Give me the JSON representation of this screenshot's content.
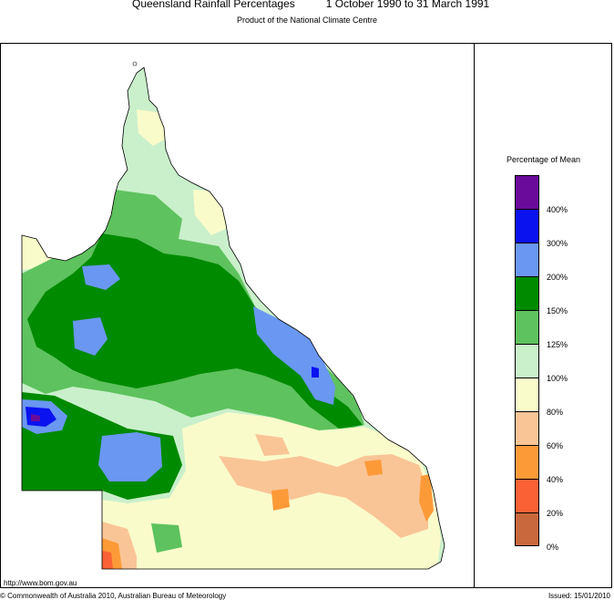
{
  "header": {
    "title": "Queensland Rainfall Percentages",
    "period": "1 October 1990 to 31 March 1991",
    "subtitle": "Product of the National Climate Centre"
  },
  "legend": {
    "title": "Percentage of Mean",
    "items": [
      {
        "label": "400%",
        "color": "#6b0b9b"
      },
      {
        "label": "300%",
        "color": "#0a12f0"
      },
      {
        "label": "200%",
        "color": "#6a97f2"
      },
      {
        "label": "150%",
        "color": "#008a00"
      },
      {
        "label": "125%",
        "color": "#5ec25e"
      },
      {
        "label": "100%",
        "color": "#caf0cb"
      },
      {
        "label": "80%",
        "color": "#fafbcb"
      },
      {
        "label": "60%",
        "color": "#f9c597"
      },
      {
        "label": "40%",
        "color": "#fd9a38"
      },
      {
        "label": "20%",
        "color": "#fa6235"
      },
      {
        "label": "0%",
        "color": "#c9683c"
      }
    ]
  },
  "footer": {
    "url": "http://www.bom.gov.au",
    "copyright": "© Commonwealth of Australia 2010, Australian Bureau of Meteorology",
    "issued": "Issued: 15/01/2010"
  }
}
